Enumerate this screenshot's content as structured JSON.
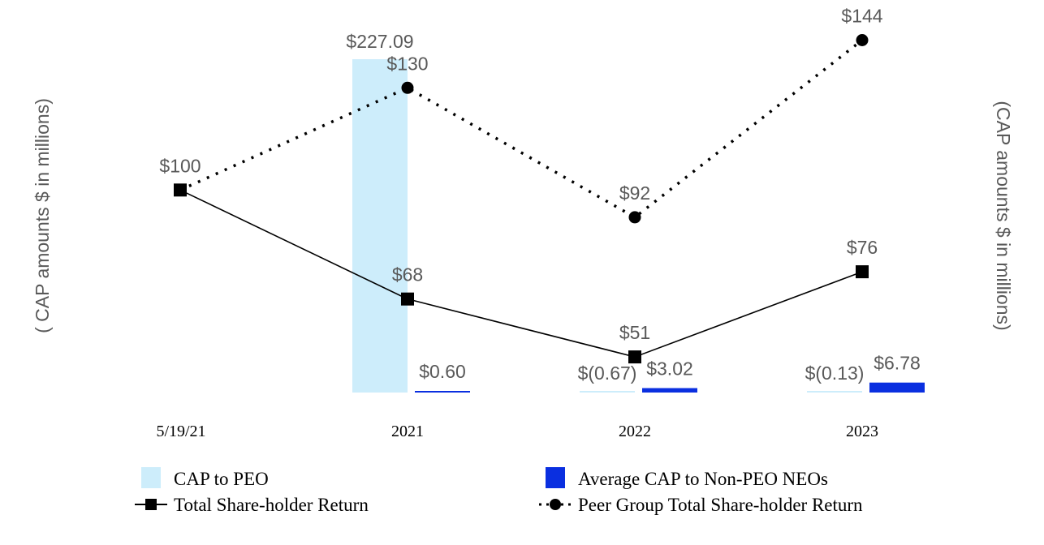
{
  "chart_data": {
    "type": "bar+line",
    "categories": [
      "5/19/21",
      "2021",
      "2022",
      "2023"
    ],
    "y_left_label": "( CAP amounts $ in millions)",
    "y_right_label": "(CAP amounts $ in millions)",
    "bar_series": [
      {
        "name": "CAP to PEO",
        "color": "#cdedfb",
        "values": [
          null,
          227.09,
          -0.67,
          -0.13
        ],
        "labels": [
          "",
          "$227.09",
          "$(0.67)",
          "$(0.13)"
        ]
      },
      {
        "name": "Average CAP to Non-PEO NEOs",
        "color": "#0a2fe0",
        "values": [
          null,
          0.6,
          3.02,
          6.78
        ],
        "labels": [
          "",
          "$0.60",
          "$3.02",
          "$6.78"
        ]
      }
    ],
    "bar_ylim": [
      0,
      227.09
    ],
    "line_series": [
      {
        "name": "Total Share-holder Return",
        "style": "solid",
        "marker": "square",
        "values": [
          100,
          68,
          51,
          76
        ],
        "labels": [
          "$100",
          "$68",
          "$51",
          "$76"
        ]
      },
      {
        "name": "Peer Group Total Share-holder Return",
        "style": "dotted",
        "marker": "circle",
        "values": [
          100,
          130,
          92,
          144
        ],
        "labels": [
          "",
          "$130",
          "$92",
          "$144"
        ]
      }
    ],
    "line_ylim": [
      0,
      180
    ],
    "legend": {
      "position": "bottom",
      "items": [
        "CAP to PEO",
        "Average CAP to Non-PEO NEOs",
        "Total Share-holder Return",
        "Peer Group Total Share-holder Return"
      ]
    }
  }
}
